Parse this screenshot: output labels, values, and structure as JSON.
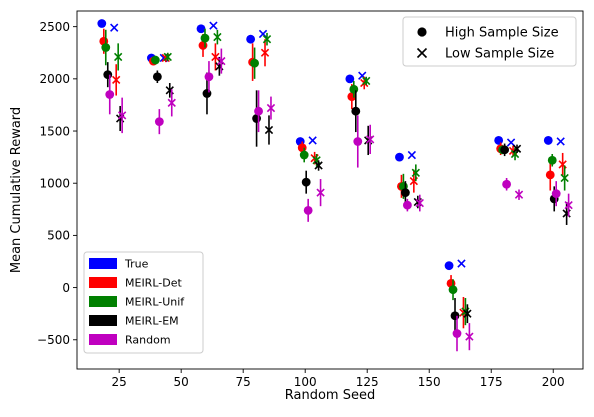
{
  "chart_data": {
    "type": "scatter",
    "title": "",
    "xlabel": "Random Seed",
    "ylabel": "Mean Cumulative Reward",
    "xlim": [
      8,
      212
    ],
    "ylim": [
      -780,
      2650
    ],
    "xticks": [
      25,
      50,
      75,
      100,
      125,
      150,
      175,
      200
    ],
    "xtick_labels": [
      "25",
      "50",
      "75",
      "100",
      "125",
      "150",
      "175",
      "200"
    ],
    "yticks": [
      -500,
      0,
      500,
      1000,
      1500,
      2000,
      2500
    ],
    "ytick_labels": [
      "−500",
      "0",
      "500",
      "1000",
      "1500",
      "2000",
      "2500"
    ],
    "grid": false,
    "size_legend": {
      "position": "upper right",
      "entries": [
        {
          "marker": "circle",
          "label": "High Sample Size"
        },
        {
          "marker": "x",
          "label": "Low Sample Size"
        }
      ]
    },
    "method_legend": {
      "position": "lower left",
      "entries": [
        {
          "label": "True",
          "color": "#0000ff"
        },
        {
          "label": "MEIRL-Det",
          "color": "#ff0000"
        },
        {
          "label": "MEIRL-Unif",
          "color": "#008000"
        },
        {
          "label": "MEIRL-EM",
          "color": "#000000"
        },
        {
          "label": "Random",
          "color": "#bf00bf"
        }
      ]
    },
    "seeds": [
      20,
      40,
      60,
      80,
      100,
      120,
      140,
      160,
      180,
      200
    ],
    "series": [
      {
        "name": "True",
        "color": "#0000ff",
        "high": {
          "x": [
            18,
            38,
            58,
            78,
            98,
            118,
            138,
            158,
            178,
            198
          ],
          "y": [
            2530,
            2200,
            2480,
            2380,
            1400,
            2000,
            1250,
            210,
            1410,
            1410
          ],
          "err": [
            0,
            0,
            0,
            0,
            0,
            0,
            0,
            0,
            0,
            0
          ]
        },
        "low": {
          "x": [
            23,
            43,
            63,
            83,
            103,
            123,
            143,
            163,
            183,
            203
          ],
          "y": [
            2490,
            2200,
            2510,
            2430,
            1410,
            2030,
            1270,
            230,
            1390,
            1400
          ],
          "err": [
            0,
            0,
            0,
            0,
            0,
            0,
            0,
            0,
            0,
            0
          ]
        }
      },
      {
        "name": "MEIRL-Det",
        "color": "#ff0000",
        "high": {
          "x": [
            18.8,
            38.8,
            58.8,
            78.8,
            98.8,
            118.8,
            138.8,
            158.8,
            178.8,
            198.8
          ],
          "y": [
            2360,
            2170,
            2320,
            2160,
            1340,
            1830,
            970,
            40,
            1330,
            1080
          ],
          "err": [
            120,
            40,
            110,
            180,
            60,
            120,
            110,
            80,
            60,
            150
          ]
        },
        "low": {
          "x": [
            23.8,
            43.8,
            63.8,
            83.8,
            103.8,
            123.8,
            143.8,
            163.8,
            183.8,
            203.8
          ],
          "y": [
            1990,
            2200,
            2210,
            2250,
            1240,
            1960,
            1020,
            -240,
            1310,
            1180
          ],
          "err": [
            150,
            40,
            130,
            130,
            60,
            60,
            110,
            150,
            50,
            110
          ]
        }
      },
      {
        "name": "MEIRL-Unif",
        "color": "#008000",
        "high": {
          "x": [
            19.6,
            39.6,
            59.6,
            79.6,
            99.6,
            119.6,
            139.6,
            159.6,
            179.6,
            199.6
          ],
          "y": [
            2300,
            2180,
            2390,
            2150,
            1270,
            1900,
            970,
            -20,
            1320,
            1220
          ],
          "err": [
            170,
            40,
            90,
            150,
            70,
            80,
            120,
            100,
            40,
            60
          ]
        },
        "low": {
          "x": [
            24.6,
            44.6,
            64.6,
            84.6,
            104.6,
            124.6,
            144.6,
            164.6,
            184.6,
            204.6
          ],
          "y": [
            2210,
            2210,
            2400,
            2380,
            1220,
            1980,
            1100,
            -230,
            1280,
            1050
          ],
          "err": [
            130,
            40,
            70,
            60,
            60,
            40,
            80,
            130,
            60,
            120
          ]
        }
      },
      {
        "name": "MEIRL-EM",
        "color": "#000000",
        "high": {
          "x": [
            20.4,
            40.4,
            60.4,
            80.4,
            100.4,
            120.4,
            140.4,
            160.4,
            180.4,
            200.4
          ],
          "y": [
            2040,
            2020,
            1860,
            1620,
            1010,
            1690,
            910,
            -270,
            1320,
            850
          ],
          "err": [
            120,
            60,
            200,
            270,
            110,
            200,
            110,
            170,
            60,
            120
          ]
        },
        "low": {
          "x": [
            25.4,
            45.4,
            65.4,
            85.4,
            105.4,
            125.4,
            145.4,
            165.4,
            185.4,
            205.4
          ],
          "y": [
            1620,
            1890,
            2120,
            1510,
            1170,
            1410,
            820,
            -250,
            1330,
            710
          ],
          "err": [
            120,
            70,
            90,
            140,
            50,
            140,
            60,
            90,
            40,
            110
          ]
        }
      },
      {
        "name": "Random",
        "color": "#bf00bf",
        "high": {
          "x": [
            21.2,
            41.2,
            61.2,
            81.2,
            101.2,
            121.2,
            141.2,
            161.2,
            181.2,
            201.2
          ],
          "y": [
            1850,
            1590,
            2020,
            1690,
            740,
            1400,
            790,
            -440,
            990,
            900
          ],
          "err": [
            190,
            120,
            150,
            200,
            110,
            250,
            60,
            170,
            60,
            120
          ]
        },
        "low": {
          "x": [
            26.2,
            46.2,
            66.2,
            86.2,
            106.2,
            126.2,
            146.2,
            166.2,
            186.2,
            206.2
          ],
          "y": [
            1650,
            1770,
            2170,
            1720,
            910,
            1420,
            810,
            -470,
            890,
            790
          ],
          "err": [
            170,
            130,
            120,
            110,
            130,
            140,
            80,
            130,
            50,
            110
          ]
        }
      }
    ]
  }
}
